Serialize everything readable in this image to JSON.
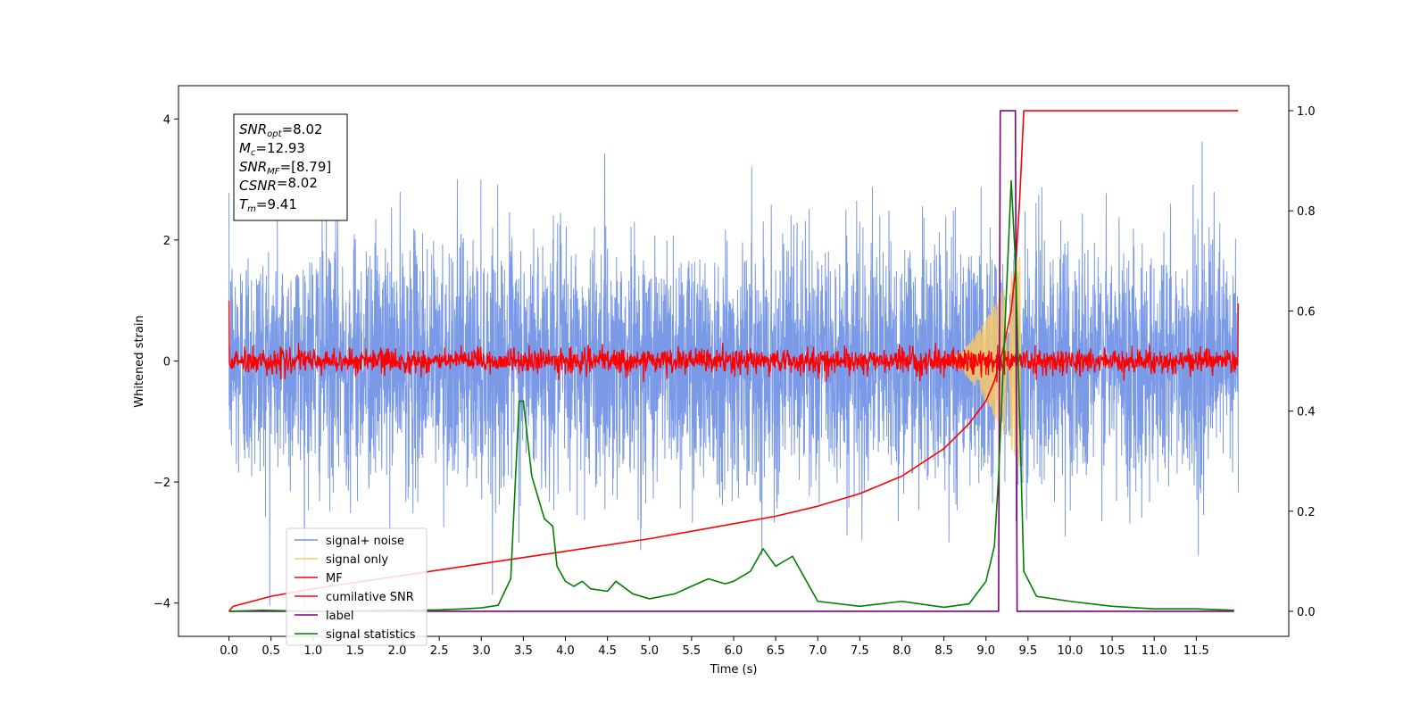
{
  "chart_data": {
    "type": "line",
    "xlabel": "Time (s)",
    "ylabel": "Whitened strain",
    "xlim": [
      -0.6,
      12.6
    ],
    "ylim": [
      -4.55,
      4.55
    ],
    "y2lim": [
      -0.05,
      1.05
    ],
    "x_ticks": [
      0.0,
      0.5,
      1.0,
      1.5,
      2.0,
      2.5,
      3.0,
      3.5,
      4.0,
      4.5,
      5.0,
      5.5,
      6.0,
      6.5,
      7.0,
      7.5,
      8.0,
      8.5,
      9.0,
      9.5,
      10.0,
      10.5,
      11.0,
      11.5
    ],
    "x_tick_labels": [
      "0.0",
      "0.5",
      "1.0",
      "1.5",
      "2.0",
      "2.5",
      "3.0",
      "3.5",
      "4.0",
      "4.5",
      "5.0",
      "5.5",
      "6.0",
      "6.5",
      "7.0",
      "7.5",
      "8.0",
      "8.5",
      "9.0",
      "9.5",
      "10.0",
      "10.5",
      "11.0",
      "11.5"
    ],
    "y_ticks": [
      -4,
      -2,
      0,
      2,
      4
    ],
    "y_tick_labels": [
      "−4",
      "−2",
      "0",
      "2",
      "4"
    ],
    "y2_ticks": [
      0.0,
      0.2,
      0.4,
      0.6,
      0.8,
      1.0
    ],
    "y2_tick_labels": [
      "0.0",
      "0.2",
      "0.4",
      "0.6",
      "0.8",
      "1.0"
    ],
    "grid": false,
    "legend_placement": "lower-left",
    "annotation_box": {
      "lines": [
        {
          "base": "SNR",
          "sub": "opt",
          "value": "=8.02"
        },
        {
          "base": "M",
          "sub": "c",
          "value": "=12.93"
        },
        {
          "base": "SNR",
          "sub": "MF",
          "value": "=[8.79]"
        },
        {
          "base": "CSNR",
          "sub": "",
          "value": "=8.02"
        },
        {
          "base": "T",
          "sub": "m",
          "value": "=9.41"
        }
      ]
    },
    "series": [
      {
        "name": "signal+ noise",
        "color": "#7393e6",
        "axis": "left",
        "description_stats": {
          "x_range": [
            0.0,
            12.0
          ],
          "std": 1.0,
          "min": -4.1,
          "max": 4.15
        }
      },
      {
        "name": "signal only",
        "color": "#f5c96a",
        "axis": "left",
        "chirp": {
          "start": 8.5,
          "end": 9.41,
          "peak_amplitude": 1.8
        }
      },
      {
        "name": "MF",
        "color": "#ff0000",
        "axis": "left",
        "description_stats": {
          "x_range": [
            0.0,
            12.0
          ],
          "center": 0.0,
          "std": 0.1,
          "start_value": 1.0,
          "end_value": 0.95
        }
      },
      {
        "name": "cumilative SNR",
        "color": "#ff0000",
        "axis": "right",
        "x": [
          0.0,
          0.05,
          0.5,
          1.0,
          2.0,
          3.0,
          4.0,
          5.0,
          6.0,
          6.5,
          7.0,
          7.5,
          8.0,
          8.5,
          8.8,
          9.0,
          9.1,
          9.2,
          9.3,
          9.35,
          9.4,
          9.45,
          10.0,
          11.0,
          12.0
        ],
        "values": [
          0.0,
          0.01,
          0.03,
          0.045,
          0.07,
          0.095,
          0.12,
          0.145,
          0.175,
          0.19,
          0.21,
          0.235,
          0.27,
          0.325,
          0.375,
          0.42,
          0.46,
          0.52,
          0.6,
          0.68,
          0.82,
          1.0,
          1.0,
          1.0,
          1.0
        ]
      },
      {
        "name": "label",
        "color": "#800080",
        "axis": "right",
        "x": [
          0.0,
          9.15,
          9.17,
          9.35,
          9.37,
          11.95
        ],
        "values": [
          0.0,
          0.0,
          1.0,
          1.0,
          0.0,
          0.0
        ]
      },
      {
        "name": "signal statistics",
        "color": "#008000",
        "axis": "right",
        "x": [
          0.0,
          0.4,
          1.0,
          2.0,
          2.5,
          2.8,
          3.0,
          3.2,
          3.35,
          3.45,
          3.5,
          3.6,
          3.75,
          3.85,
          3.9,
          4.0,
          4.1,
          4.2,
          4.3,
          4.5,
          4.6,
          4.8,
          5.0,
          5.3,
          5.5,
          5.7,
          5.9,
          6.0,
          6.2,
          6.35,
          6.5,
          6.7,
          7.0,
          7.5,
          8.0,
          8.5,
          8.8,
          9.0,
          9.1,
          9.15,
          9.3,
          9.35,
          9.45,
          9.6,
          10.0,
          10.5,
          11.0,
          11.5,
          11.95
        ],
        "values": [
          0.0,
          0.002,
          0.0,
          0.002,
          0.003,
          0.005,
          0.007,
          0.012,
          0.065,
          0.42,
          0.42,
          0.27,
          0.185,
          0.17,
          0.09,
          0.06,
          0.05,
          0.06,
          0.045,
          0.04,
          0.06,
          0.035,
          0.025,
          0.035,
          0.05,
          0.065,
          0.055,
          0.06,
          0.08,
          0.125,
          0.09,
          0.11,
          0.02,
          0.01,
          0.02,
          0.008,
          0.015,
          0.06,
          0.13,
          0.27,
          0.86,
          0.7,
          0.08,
          0.03,
          0.02,
          0.01,
          0.005,
          0.005,
          0.002
        ]
      }
    ]
  }
}
